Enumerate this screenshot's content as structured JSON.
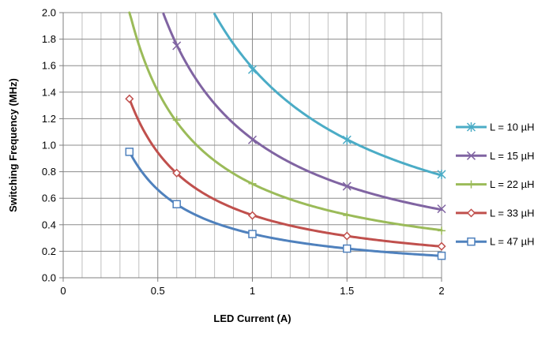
{
  "chart_data": {
    "type": "line",
    "title": "",
    "xlabel": "LED Current (A)",
    "ylabel": "Switching Frequency (MHz)",
    "xlim": [
      0,
      2
    ],
    "ylim": [
      0,
      2
    ],
    "x_ticks": [
      "0",
      "0.5",
      "1",
      "1.5",
      "2"
    ],
    "y_ticks": [
      "0.0",
      "0.2",
      "0.4",
      "0.6",
      "0.8",
      "1.0",
      "1.2",
      "1.4",
      "1.6",
      "1.8",
      "2.0"
    ],
    "grid": true,
    "legend_position": "right",
    "series": [
      {
        "name": "L = 10 µH",
        "color": "#4bacc6",
        "marker": "asterisk",
        "x": [
          0.8,
          1.0,
          1.5,
          2.0
        ],
        "y": [
          2.0,
          1.57,
          1.04,
          0.78
        ]
      },
      {
        "name": "L = 15 µH",
        "color": "#8064a2",
        "marker": "x",
        "x": [
          0.53,
          0.6,
          1.0,
          1.5,
          2.0
        ],
        "y": [
          2.0,
          1.75,
          1.04,
          0.69,
          0.52
        ]
      },
      {
        "name": "L = 22 µH",
        "color": "#9bbb59",
        "marker": "plus",
        "x": [
          0.35,
          0.6,
          1.0,
          1.5,
          2.0
        ],
        "y": [
          2.0,
          1.19,
          0.71,
          0.47,
          0.355
        ]
      },
      {
        "name": "L = 33 µH",
        "color": "#c0504d",
        "marker": "diamond",
        "x": [
          0.35,
          0.6,
          1.0,
          1.5,
          2.0
        ],
        "y": [
          1.35,
          0.79,
          0.47,
          0.315,
          0.237
        ]
      },
      {
        "name": "L = 47 µH",
        "color": "#4f81bd",
        "marker": "square",
        "x": [
          0.35,
          0.6,
          1.0,
          1.5,
          2.0
        ],
        "y": [
          0.95,
          0.555,
          0.33,
          0.22,
          0.166
        ]
      }
    ]
  }
}
